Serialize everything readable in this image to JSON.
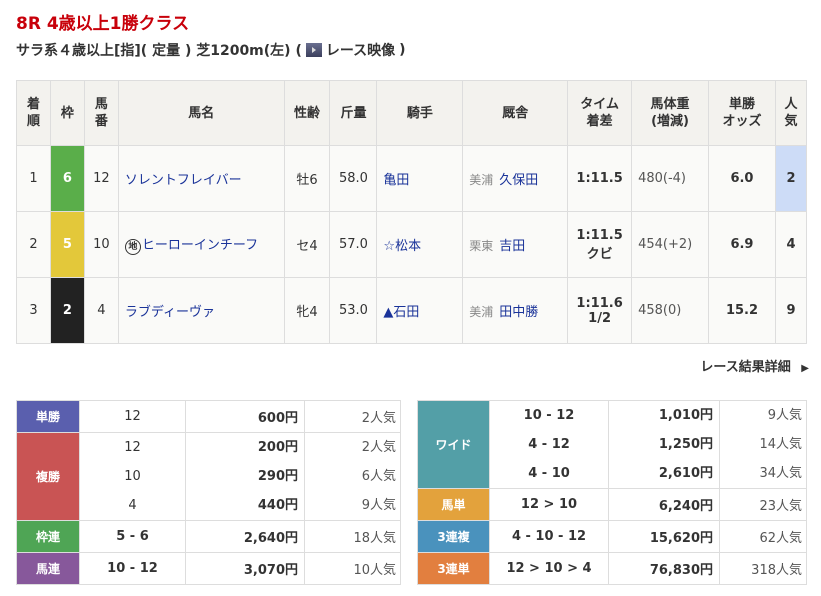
{
  "race": {
    "title": "8R 4歳以上1勝クラス",
    "conditions": "サラ系４歳以上[指]( 定量 ) 芝1200m(左) (",
    "video_label": "レース映像",
    "close_paren": ")"
  },
  "headers": [
    "着\n順",
    "枠",
    "馬\n番",
    "馬名",
    "性齢",
    "斤量",
    "騎手",
    "厩舎",
    "タイム\n着差",
    "馬体重\n(増減)",
    "単勝\nオッズ",
    "人\n気"
  ],
  "results": [
    {
      "rank": "1",
      "waku": "6",
      "waku_color": "#5aae4a",
      "num": "12",
      "mark": "",
      "name": "ソレントフレイバー",
      "sex_age": "牡6",
      "weight": "58.0",
      "jockey": "亀田",
      "region": "美浦",
      "trainer": "久保田",
      "time": "1:11.5",
      "margin": "",
      "body": "480(-4)",
      "odds": "6.0",
      "pop": "2",
      "pop_highlight": "#cddcf7"
    },
    {
      "rank": "2",
      "waku": "5",
      "waku_color": "#e3c83a",
      "num": "10",
      "mark": "地",
      "name": "ヒーローインチーフ",
      "sex_age": "セ4",
      "weight": "57.0",
      "jockey": "☆松本",
      "region": "栗東",
      "trainer": "吉田",
      "time": "1:11.5",
      "margin": "クビ",
      "body": "454(+2)",
      "odds": "6.9",
      "pop": "4"
    },
    {
      "rank": "3",
      "waku": "2",
      "waku_color": "#222222",
      "num": "4",
      "mark": "",
      "name": "ラブディーヴァ",
      "sex_age": "牝4",
      "weight": "53.0",
      "jockey": "▲石田",
      "region": "美浦",
      "trainer": "田中勝",
      "time": "1:11.6",
      "margin": "1/2",
      "body": "458(0)",
      "odds": "15.2",
      "pop": "9"
    }
  ],
  "more_link": "レース結果詳細",
  "payouts_left": [
    {
      "label": "単勝",
      "color": "#5a5fae",
      "rows": [
        [
          "12",
          "600円",
          "2人気"
        ]
      ]
    },
    {
      "label": "複勝",
      "color": "#c95454",
      "rows": [
        [
          "12",
          "200円",
          "2人気"
        ],
        [
          "10",
          "290円",
          "6人気"
        ],
        [
          "4",
          "440円",
          "9人気"
        ]
      ]
    },
    {
      "label": "枠連",
      "color": "#4fa555",
      "rows": [
        [
          "5 - 6",
          "2,640円",
          "18人気"
        ]
      ]
    },
    {
      "label": "馬連",
      "color": "#87589b",
      "rows": [
        [
          "10 - 12",
          "3,070円",
          "10人気"
        ]
      ]
    }
  ],
  "payouts_right": [
    {
      "label": "ワイド",
      "color": "#539fa7",
      "rows": [
        [
          "10 - 12",
          "1,010円",
          "9人気"
        ],
        [
          "4 - 12",
          "1,250円",
          "14人気"
        ],
        [
          "4 - 10",
          "2,610円",
          "34人気"
        ]
      ]
    },
    {
      "label": "馬単",
      "color": "#e3a23c",
      "rows": [
        [
          "12 > 10",
          "6,240円",
          "23人気"
        ]
      ]
    },
    {
      "label": "3連複",
      "color": "#4a92bd",
      "rows": [
        [
          "4 - 10 - 12",
          "15,620円",
          "62人気"
        ]
      ]
    },
    {
      "label": "3連単",
      "color": "#e27f3f",
      "rows": [
        [
          "12 > 10 > 4",
          "76,830円",
          "318人気"
        ]
      ]
    }
  ]
}
